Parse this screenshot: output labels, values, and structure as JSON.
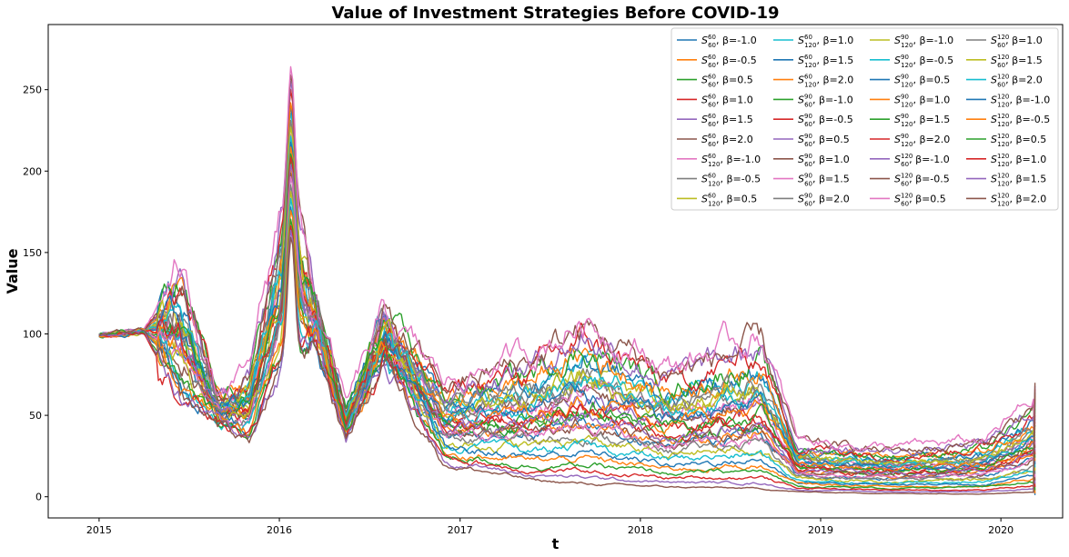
{
  "chart_data": {
    "type": "line",
    "title": "Value of Investment Strategies Before COVID-19",
    "xlabel": "t",
    "ylabel": "Value",
    "x_ticks": [
      "2015",
      "2016",
      "2017",
      "2018",
      "2019",
      "2020"
    ],
    "y_ticks": [
      0,
      50,
      100,
      150,
      200,
      250
    ],
    "xlim": [
      "2014-09-20",
      "2020-05-05"
    ],
    "ylim": [
      -13,
      290
    ],
    "grid": false,
    "legend_placement": "upper right",
    "legend_columns": 4,
    "series": [
      {
        "name": "S_60^60, β=-1.0",
        "S": "S",
        "sup": "60",
        "sub": "60",
        "beta": "β=-1.0",
        "color": "#1f77b4",
        "peak": 205,
        "end": 1
      },
      {
        "name": "S_60^60, β=-0.5",
        "S": "S",
        "sup": "60",
        "sub": "60",
        "beta": "β=-0.5",
        "color": "#ff7f0e",
        "peak": 210,
        "end": 2
      },
      {
        "name": "S_60^60, β=0.5",
        "S": "S",
        "sup": "60",
        "sub": "60",
        "beta": "β=0.5",
        "color": "#2ca02c",
        "peak": 215,
        "end": 4
      },
      {
        "name": "S_60^60, β=1.0",
        "S": "S",
        "sup": "60",
        "sub": "60",
        "beta": "β=1.0",
        "color": "#d62728",
        "peak": 220,
        "end": 6
      },
      {
        "name": "S_60^60, β=1.5",
        "S": "S",
        "sup": "60",
        "sub": "60",
        "beta": "β=1.5",
        "color": "#9467bd",
        "peak": 224,
        "end": 8
      },
      {
        "name": "S_60^60, β=2.0",
        "S": "S",
        "sup": "60",
        "sub": "60",
        "beta": "β=2.0",
        "color": "#8c564b",
        "peak": 228,
        "end": 10
      },
      {
        "name": "S_120^60, β=-1.0",
        "S": "S",
        "sup": "60",
        "sub": "120",
        "beta": "β=-1.0",
        "color": "#e377c2",
        "peak": 232,
        "end": 12
      },
      {
        "name": "S_120^60, β=-0.5",
        "S": "S",
        "sup": "60",
        "sub": "120",
        "beta": "β=-0.5",
        "color": "#7f7f7f",
        "peak": 236,
        "end": 14
      },
      {
        "name": "S_120^60, β=0.5",
        "S": "S",
        "sup": "60",
        "sub": "120",
        "beta": "β=0.5",
        "color": "#bcbd22",
        "peak": 240,
        "end": 16
      },
      {
        "name": "S_120^60, β=1.0",
        "S": "S",
        "sup": "60",
        "sub": "120",
        "beta": "β=1.0",
        "color": "#17becf",
        "peak": 244,
        "end": 18
      },
      {
        "name": "S_120^60, β=1.5",
        "S": "S",
        "sup": "60",
        "sub": "120",
        "beta": "β=1.5",
        "color": "#1f77b4",
        "peak": 248,
        "end": 20
      },
      {
        "name": "S_120^60, β=2.0",
        "S": "S",
        "sup": "60",
        "sub": "120",
        "beta": "β=2.0",
        "color": "#ff7f0e",
        "peak": 252,
        "end": 22
      },
      {
        "name": "S_60^90, β=-1.0",
        "S": "S",
        "sup": "90",
        "sub": "60",
        "beta": "β=-1.0",
        "color": "#2ca02c",
        "peak": 256,
        "end": 24
      },
      {
        "name": "S_60^90, β=-0.5",
        "S": "S",
        "sup": "90",
        "sub": "60",
        "beta": "β=-0.5",
        "color": "#d62728",
        "peak": 260,
        "end": 26
      },
      {
        "name": "S_60^90, β=0.5",
        "S": "S",
        "sup": "90",
        "sub": "60",
        "beta": "β=0.5",
        "color": "#9467bd",
        "peak": 264,
        "end": 28
      },
      {
        "name": "S_60^90, β=1.0",
        "S": "S",
        "sup": "90",
        "sub": "60",
        "beta": "β=1.0",
        "color": "#8c564b",
        "peak": 268,
        "end": 30
      },
      {
        "name": "S_60^90, β=1.5",
        "S": "S",
        "sup": "90",
        "sub": "60",
        "beta": "β=1.5",
        "color": "#e377c2",
        "peak": 275,
        "end": 32
      },
      {
        "name": "S_60^90, β=2.0",
        "S": "S",
        "sup": "90",
        "sub": "60",
        "beta": "β=2.0",
        "color": "#7f7f7f",
        "peak": 240,
        "end": 34
      },
      {
        "name": "S_120^90, β=-1.0",
        "S": "S",
        "sup": "90",
        "sub": "120",
        "beta": "β=-1.0",
        "color": "#bcbd22",
        "peak": 236,
        "end": 36
      },
      {
        "name": "S_120^90, β=-0.5",
        "S": "S",
        "sup": "90",
        "sub": "120",
        "beta": "β=-0.5",
        "color": "#17becf",
        "peak": 232,
        "end": 38
      },
      {
        "name": "S_120^90, β=0.5",
        "S": "S",
        "sup": "90",
        "sub": "120",
        "beta": "β=0.5",
        "color": "#1f77b4",
        "peak": 228,
        "end": 40
      },
      {
        "name": "S_120^90, β=1.0",
        "S": "S",
        "sup": "90",
        "sub": "120",
        "beta": "β=1.0",
        "color": "#ff7f0e",
        "peak": 224,
        "end": 42
      },
      {
        "name": "S_120^90, β=1.5",
        "S": "S",
        "sup": "90",
        "sub": "120",
        "beta": "β=1.5",
        "color": "#2ca02c",
        "peak": 220,
        "end": 44
      },
      {
        "name": "S_120^90, β=2.0",
        "S": "S",
        "sup": "90",
        "sub": "120",
        "beta": "β=2.0",
        "color": "#d62728",
        "peak": 216,
        "end": 46
      },
      {
        "name": "S_60^120, β=-1.0",
        "S": "S",
        "sup": "120",
        "sub": "60",
        "beta": "β=-1.0",
        "color": "#9467bd",
        "peak": 212,
        "end": 48
      },
      {
        "name": "S_60^120, β=-0.5",
        "S": "S",
        "sup": "120",
        "sub": "60",
        "beta": "β=-0.5",
        "color": "#8c564b",
        "peak": 208,
        "end": 50
      },
      {
        "name": "S_60^120, β=0.5",
        "S": "S",
        "sup": "120",
        "sub": "60",
        "beta": "β=0.5",
        "color": "#e377c2",
        "peak": 204,
        "end": 52
      },
      {
        "name": "S_60^120, β=1.0",
        "S": "S",
        "sup": "120",
        "sub": "60",
        "beta": "β=1.0",
        "color": "#7f7f7f",
        "peak": 200,
        "end": 54
      },
      {
        "name": "S_60^120, β=1.5",
        "S": "S",
        "sup": "120",
        "sub": "60",
        "beta": "β=1.5",
        "color": "#bcbd22",
        "peak": 196,
        "end": 56
      },
      {
        "name": "S_60^120, β=2.0",
        "S": "S",
        "sup": "120",
        "sub": "60",
        "beta": "β=2.0",
        "color": "#17becf",
        "peak": 192,
        "end": 58
      },
      {
        "name": "S_120^120, β=-1.0",
        "S": "S",
        "sup": "120",
        "sub": "120",
        "beta": "β=-1.0",
        "color": "#1f77b4",
        "peak": 188,
        "end": 60
      },
      {
        "name": "S_120^120, β=-0.5",
        "S": "S",
        "sup": "120",
        "sub": "120",
        "beta": "β=-0.5",
        "color": "#ff7f0e",
        "peak": 184,
        "end": 62
      },
      {
        "name": "S_120^120, β=0.5",
        "S": "S",
        "sup": "120",
        "sub": "120",
        "beta": "β=0.5",
        "color": "#2ca02c",
        "peak": 180,
        "end": 64
      },
      {
        "name": "S_120^120, β=1.0",
        "S": "S",
        "sup": "120",
        "sub": "120",
        "beta": "β=1.0",
        "color": "#d62728",
        "peak": 176,
        "end": 66
      },
      {
        "name": "S_120^120, β=1.5",
        "S": "S",
        "sup": "120",
        "sub": "120",
        "beta": "β=1.5",
        "color": "#9467bd",
        "peak": 172,
        "end": 68
      },
      {
        "name": "S_120^120, β=2.0",
        "S": "S",
        "sup": "120",
        "sub": "120",
        "beta": "β=2.0",
        "color": "#8c564b",
        "peak": 168,
        "end": 70
      }
    ],
    "shape_keypoints": {
      "x": [
        "2015-01-01",
        "2015-04-01",
        "2015-06-15",
        "2015-09-01",
        "2015-11-01",
        "2016-01-20",
        "2016-03-15",
        "2016-05-15",
        "2016-08-01",
        "2016-12-01",
        "2017-06-01",
        "2017-09-10",
        "2018-03-01",
        "2018-09-01",
        "2018-11-15",
        "2019-06-01",
        "2019-12-01",
        "2020-03-10"
      ],
      "high_path": [
        99,
        102,
        140,
        60,
        75,
        200,
        120,
        55,
        110,
        70,
        90,
        110,
        80,
        100,
        35,
        30,
        35,
        60
      ],
      "low_path": [
        99,
        102,
        58,
        45,
        35,
        85,
        95,
        35,
        85,
        20,
        10,
        8,
        6,
        5,
        3,
        2,
        2,
        3
      ]
    }
  }
}
